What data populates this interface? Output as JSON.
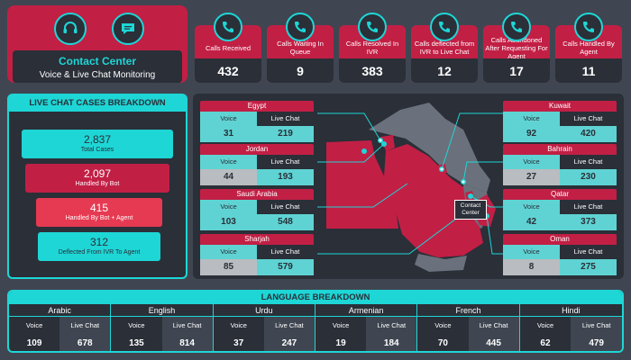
{
  "header": {
    "title": "Contact Center",
    "subtitle": "Voice & Live Chat Monitoring",
    "icons": [
      "headset-icon",
      "chat-bubble-icon"
    ]
  },
  "kpis": [
    {
      "label": "Calls Received",
      "value": "432",
      "icon": "phone-incoming-icon"
    },
    {
      "label": "Calls Waiting In Queue",
      "value": "9",
      "icon": "phone-wait-icon"
    },
    {
      "label": "Calls Resolved In IVR",
      "value": "383",
      "icon": "phone-check-icon"
    },
    {
      "label": "Calls deflected from IVR to Live Chat",
      "value": "12",
      "icon": "phone-transfer-icon"
    },
    {
      "label": "Calls Abandoned After Requesting For Agent",
      "value": "17",
      "icon": "phone-hangup-icon"
    },
    {
      "label": "Calls Handled By Agent",
      "value": "11",
      "icon": "agent-phone-icon"
    }
  ],
  "live_chat": {
    "title": "LIVE CHAT CASES BREAKDOWN",
    "items": [
      {
        "value": "2,837",
        "label": "Total Cases",
        "color": "#1ed6d6"
      },
      {
        "value": "2,097",
        "label": "Handled By Bot",
        "color": "#c21f45"
      },
      {
        "value": "415",
        "label": "Handled By Bot + Agent",
        "color": "#e63a52"
      },
      {
        "value": "312",
        "label": "Deflected From IVR To Agent",
        "color": "#1ed6d6"
      }
    ]
  },
  "map": {
    "center_label": "Contact Center",
    "col_voice": "Voice",
    "col_chat": "Live Chat",
    "countries": [
      {
        "name": "Egypt",
        "voice": "31",
        "chat": "219"
      },
      {
        "name": "Jordan",
        "voice": "44",
        "chat": "193"
      },
      {
        "name": "Saudi Arabia",
        "voice": "103",
        "chat": "548"
      },
      {
        "name": "Sharjah",
        "voice": "85",
        "chat": "579"
      },
      {
        "name": "Kuwait",
        "voice": "92",
        "chat": "420"
      },
      {
        "name": "Bahrain",
        "voice": "27",
        "chat": "230"
      },
      {
        "name": "Qatar",
        "voice": "42",
        "chat": "373"
      },
      {
        "name": "Oman",
        "voice": "8",
        "chat": "275"
      }
    ]
  },
  "languages": {
    "title": "LANGUAGE BREAKDOWN",
    "col_voice": "Voice",
    "col_chat": "Live Chat",
    "items": [
      {
        "name": "Arabic",
        "voice": "109",
        "chat": "678"
      },
      {
        "name": "English",
        "voice": "135",
        "chat": "814"
      },
      {
        "name": "Urdu",
        "voice": "37",
        "chat": "247"
      },
      {
        "name": "Armenian",
        "voice": "19",
        "chat": "184"
      },
      {
        "name": "French",
        "voice": "70",
        "chat": "445"
      },
      {
        "name": "Hindi",
        "voice": "62",
        "chat": "479"
      }
    ]
  }
}
